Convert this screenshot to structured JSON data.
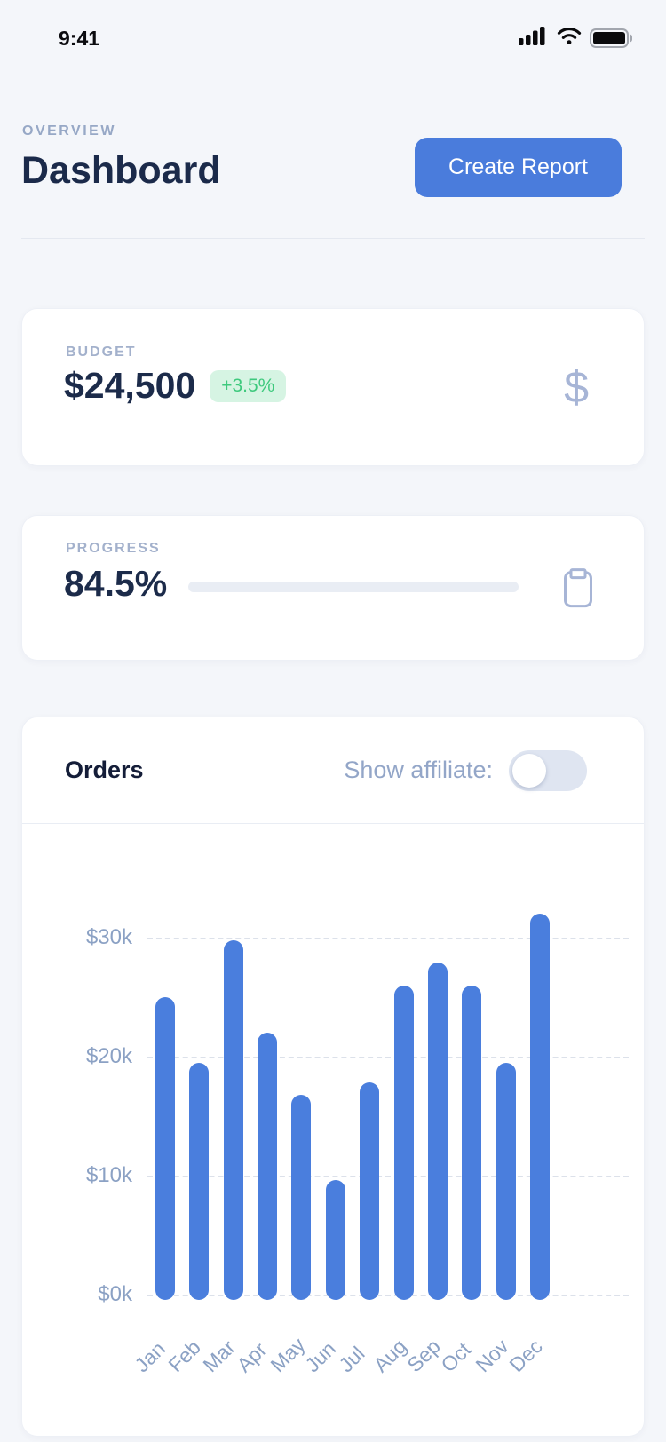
{
  "status_bar": {
    "time": "9:41",
    "icons": [
      "cellular-signal",
      "wifi",
      "battery-full"
    ]
  },
  "header": {
    "eyebrow": "OVERVIEW",
    "title": "Dashboard",
    "button_label": "Create Report"
  },
  "budget": {
    "label": "BUDGET",
    "value": "$24,500",
    "delta": "+3.5%",
    "icon": "dollar-sign"
  },
  "progress": {
    "label": "PROGRESS",
    "value": "84.5%",
    "percent": 84.5,
    "icon": "clipboard"
  },
  "orders": {
    "title": "Orders",
    "toggle_label": "Show affiliate:",
    "toggle_state": "off"
  },
  "colors": {
    "page_bg": "#f4f6fa",
    "accent_blue": "#4a7cdc",
    "bar_blue": "#4a7edd",
    "navy_text": "#1c2b4a",
    "muted_label": "#a3b1cc",
    "axis_label": "#8ba1c4",
    "green_text": "#3ec97d",
    "green_bg": "#d6f4e3",
    "toggle_track": "#dfe5f1"
  },
  "chart_data": {
    "type": "bar",
    "title": "Orders",
    "categories": [
      "Jan",
      "Feb",
      "Mar",
      "Apr",
      "May",
      "Jun",
      "Jul",
      "Aug",
      "Sep",
      "Oct",
      "Nov",
      "Dec"
    ],
    "values": [
      25,
      19.5,
      29.8,
      22,
      16.8,
      9.6,
      17.8,
      26,
      27.9,
      26,
      19.5,
      32
    ],
    "unit": "thousand dollars",
    "xlabel": "",
    "ylabel": "",
    "y_ticks": [
      0,
      10,
      20,
      30
    ],
    "y_tick_labels": [
      "$0k",
      "$10k",
      "$20k",
      "$30k"
    ],
    "ylim": [
      0,
      33.5
    ],
    "grid": "horizontal-dashed",
    "legend": "none",
    "bar_color": "#4a7edd"
  }
}
